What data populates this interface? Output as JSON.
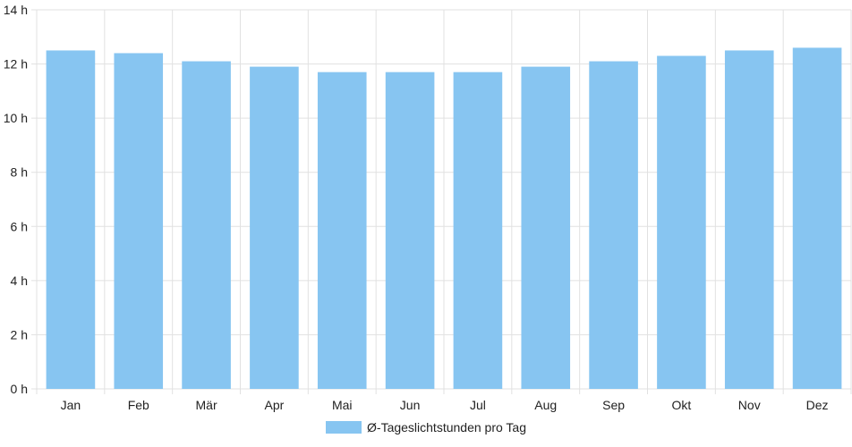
{
  "chart_data": {
    "type": "bar",
    "categories": [
      "Jan",
      "Feb",
      "Mär",
      "Apr",
      "Mai",
      "Jun",
      "Jul",
      "Aug",
      "Sep",
      "Okt",
      "Nov",
      "Dez"
    ],
    "series": [
      {
        "name": "Ø-Tageslichtstunden pro Tag",
        "values": [
          12.5,
          12.4,
          12.1,
          11.9,
          11.7,
          11.7,
          11.7,
          11.9,
          12.1,
          12.3,
          12.5,
          12.6
        ],
        "color": "#87c5f1"
      }
    ],
    "y_ticks": [
      "0 h",
      "2 h",
      "4 h",
      "6 h",
      "8 h",
      "10 h",
      "12 h",
      "14 h"
    ],
    "ylim": [
      0,
      14
    ],
    "grid": true,
    "legend_position": "bottom"
  }
}
